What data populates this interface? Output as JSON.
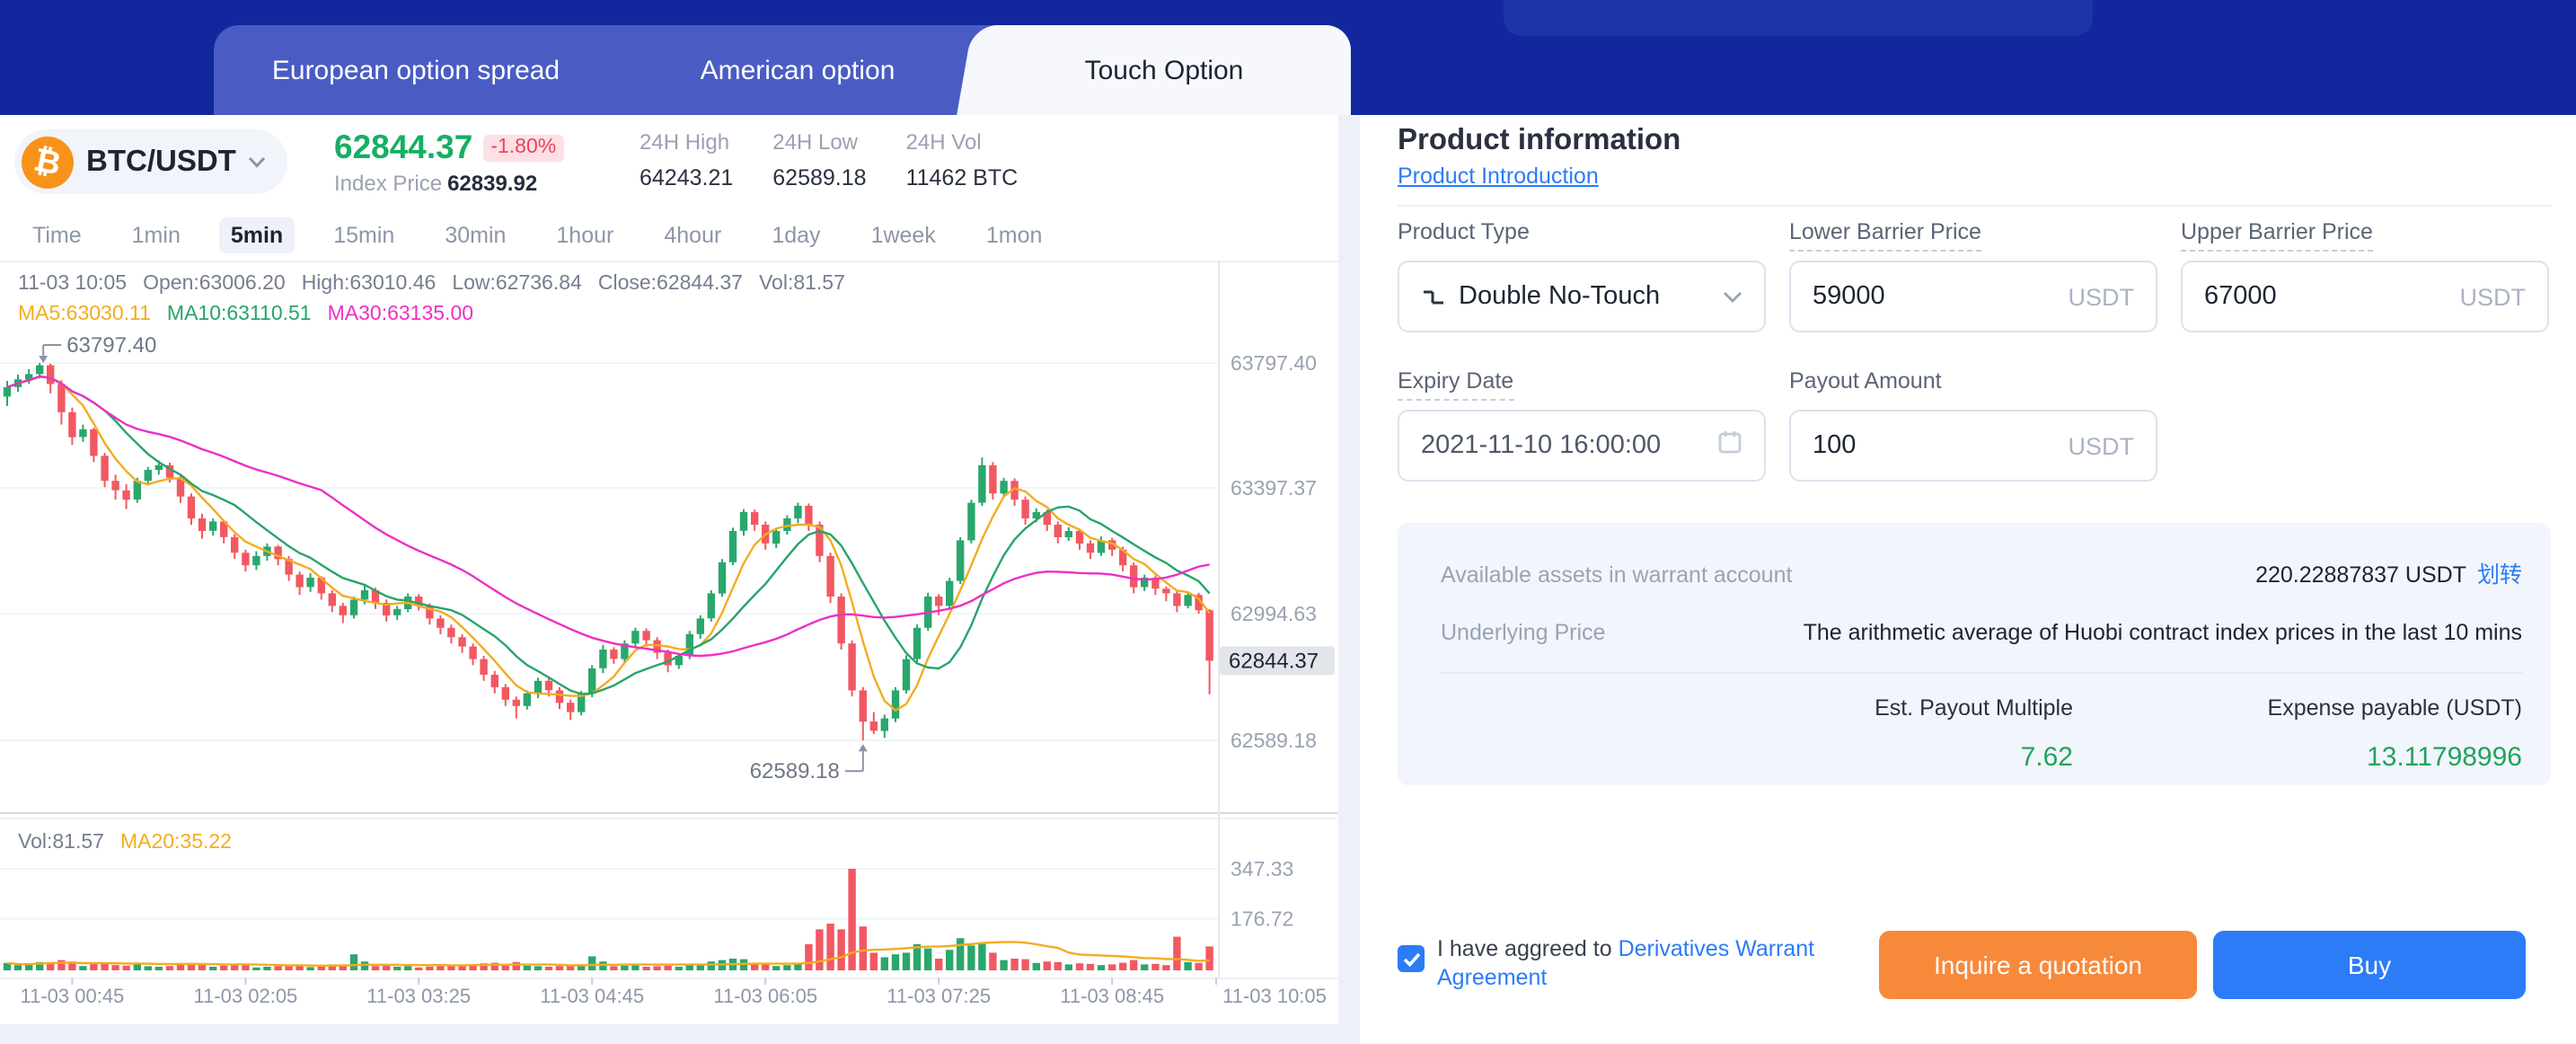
{
  "header": {
    "tabs": [
      {
        "label": "European option spread",
        "active": false
      },
      {
        "label": "American option",
        "active": false
      },
      {
        "label": "Touch Option",
        "active": true
      }
    ]
  },
  "market": {
    "pair": "BTC/USDT",
    "last_price": "62844.37",
    "change_percent": "-1.80%",
    "index_price_label": "Index Price",
    "index_price": "62839.92",
    "stats": [
      {
        "label": "24H High",
        "value": "64243.21"
      },
      {
        "label": "24H Low",
        "value": "62589.18"
      },
      {
        "label": "24H Vol",
        "value": "11462 BTC"
      }
    ]
  },
  "toolbar": {
    "intervals": [
      "Time",
      "1min",
      "5min",
      "15min",
      "30min",
      "1hour",
      "4hour",
      "1day",
      "1week",
      "1mon"
    ],
    "active_interval": "5min"
  },
  "chart_data": {
    "type": "candlestick",
    "symbol": "BTC/USDT",
    "interval": "5min",
    "info_segments": [
      "11-03 10:05",
      "Open:63006.20",
      "High:63010.46",
      "Low:62736.84",
      "Close:62844.37",
      "Vol:81.57"
    ],
    "overlays": [
      {
        "label": "MA5:63030.11",
        "color": "#F3AC1F"
      },
      {
        "label": "MA10:63110.51",
        "color": "#27A46A"
      },
      {
        "label": "MA30:63135.00",
        "color": "#EE2FC4"
      }
    ],
    "volume_info": [
      {
        "label": "Vol:81.57",
        "color": "#757E90"
      },
      {
        "label": "MA20:35.22",
        "color": "#F3AC1F"
      }
    ],
    "price_gridlines": [
      "63797.40",
      "63397.37",
      "62994.63",
      "62589.18"
    ],
    "volume_gridlines": [
      "347.33",
      "176.72"
    ],
    "current_price": "62844.37",
    "annotations": {
      "high": {
        "text": "63797.40",
        "index": 3
      },
      "low": {
        "text": "62589.18",
        "index": 79
      }
    },
    "x_ticks": [
      {
        "label": "11-03 00:45",
        "index": 6
      },
      {
        "label": "11-03 02:05",
        "index": 22
      },
      {
        "label": "11-03 03:25",
        "index": 38
      },
      {
        "label": "11-03 04:45",
        "index": 54
      },
      {
        "label": "11-03 06:05",
        "index": 70
      },
      {
        "label": "11-03 07:25",
        "index": 86
      },
      {
        "label": "11-03 08:45",
        "index": 102
      },
      {
        "label": "11-03 10:05",
        "index": 117
      }
    ],
    "up_color": "#2AA76D",
    "down_color": "#F25862",
    "candles": [
      [
        63690,
        63740,
        63660,
        63720,
        25
      ],
      [
        63720,
        63760,
        63705,
        63745,
        18
      ],
      [
        63745,
        63778,
        63730,
        63762,
        20
      ],
      [
        63762,
        63797.4,
        63748,
        63790,
        28
      ],
      [
        63790,
        63795,
        63700,
        63730,
        28
      ],
      [
        63730,
        63742,
        63600,
        63640,
        35
      ],
      [
        63640,
        63655,
        63535,
        63560,
        30
      ],
      [
        63560,
        63600,
        63545,
        63585,
        15
      ],
      [
        63585,
        63590,
        63480,
        63500,
        22
      ],
      [
        63500,
        63510,
        63400,
        63420,
        26
      ],
      [
        63420,
        63440,
        63360,
        63390,
        18
      ],
      [
        63390,
        63410,
        63330,
        63360,
        16
      ],
      [
        63360,
        63430,
        63350,
        63420,
        20
      ],
      [
        63420,
        63465,
        63405,
        63455,
        14
      ],
      [
        63455,
        63485,
        63440,
        63470,
        12
      ],
      [
        63470,
        63478,
        63415,
        63430,
        15
      ],
      [
        63430,
        63440,
        63350,
        63370,
        22
      ],
      [
        63370,
        63380,
        63280,
        63300,
        25
      ],
      [
        63300,
        63315,
        63235,
        63260,
        19
      ],
      [
        63260,
        63300,
        63245,
        63290,
        12
      ],
      [
        63290,
        63295,
        63220,
        63240,
        16
      ],
      [
        63240,
        63250,
        63170,
        63190,
        18
      ],
      [
        63190,
        63200,
        63130,
        63150,
        20
      ],
      [
        63150,
        63195,
        63135,
        63180,
        10
      ],
      [
        63180,
        63220,
        63165,
        63210,
        12
      ],
      [
        63210,
        63215,
        63150,
        63170,
        14
      ],
      [
        63170,
        63180,
        63100,
        63120,
        16
      ],
      [
        63120,
        63130,
        63055,
        63080,
        18
      ],
      [
        63080,
        63125,
        63065,
        63110,
        11
      ],
      [
        63110,
        63115,
        63040,
        63060,
        15
      ],
      [
        63060,
        63070,
        63000,
        63020,
        20
      ],
      [
        63020,
        63030,
        62965,
        62990,
        18
      ],
      [
        62990,
        63050,
        62980,
        63040,
        55
      ],
      [
        63040,
        63085,
        63025,
        63070,
        30
      ],
      [
        63070,
        63078,
        63010,
        63030,
        15
      ],
      [
        63030,
        63040,
        62970,
        62990,
        17
      ],
      [
        62990,
        63020,
        62975,
        63010,
        12
      ],
      [
        63010,
        63060,
        63000,
        63050,
        14
      ],
      [
        63050,
        63058,
        63005,
        63020,
        10
      ],
      [
        63020,
        63028,
        62960,
        62980,
        13
      ],
      [
        62980,
        62990,
        62930,
        62950,
        15
      ],
      [
        62950,
        62960,
        62900,
        62920,
        14
      ],
      [
        62920,
        62930,
        62870,
        62890,
        16
      ],
      [
        62890,
        62900,
        62830,
        62850,
        18
      ],
      [
        62850,
        62860,
        62780,
        62800,
        24
      ],
      [
        62800,
        62812,
        62740,
        62760,
        26
      ],
      [
        62760,
        62770,
        62700,
        62720,
        22
      ],
      [
        62720,
        62730,
        62660,
        62700,
        28
      ],
      [
        62700,
        62750,
        62688,
        62740,
        16
      ],
      [
        62740,
        62790,
        62725,
        62780,
        14
      ],
      [
        62780,
        62788,
        62730,
        62750,
        12
      ],
      [
        62750,
        62760,
        62690,
        62710,
        15
      ],
      [
        62710,
        62720,
        62655,
        62680,
        18
      ],
      [
        62680,
        62748,
        62670,
        62740,
        20
      ],
      [
        62740,
        62830,
        62728,
        62820,
        48
      ],
      [
        62820,
        62895,
        62805,
        62880,
        30
      ],
      [
        62880,
        62888,
        62835,
        62850,
        14
      ],
      [
        62850,
        62910,
        62840,
        62900,
        16
      ],
      [
        62900,
        62950,
        62888,
        62940,
        18
      ],
      [
        62940,
        62948,
        62890,
        62910,
        12
      ],
      [
        62910,
        62920,
        62850,
        62870,
        14
      ],
      [
        62870,
        62880,
        62808,
        62830,
        16
      ],
      [
        62830,
        62868,
        62818,
        62860,
        12
      ],
      [
        62860,
        62940,
        62850,
        62930,
        20
      ],
      [
        62930,
        62990,
        62915,
        62980,
        22
      ],
      [
        62980,
        63070,
        62970,
        63060,
        30
      ],
      [
        63060,
        63170,
        63050,
        63160,
        35
      ],
      [
        63160,
        63270,
        63150,
        63260,
        40
      ],
      [
        63260,
        63330,
        63245,
        63320,
        38
      ],
      [
        63320,
        63328,
        63260,
        63280,
        20
      ],
      [
        63280,
        63290,
        63200,
        63220,
        22
      ],
      [
        63220,
        63268,
        63205,
        63260,
        15
      ],
      [
        63260,
        63310,
        63248,
        63300,
        18
      ],
      [
        63300,
        63350,
        63285,
        63340,
        20
      ],
      [
        63340,
        63348,
        63260,
        63280,
        90
      ],
      [
        63280,
        63290,
        63160,
        63180,
        140
      ],
      [
        63180,
        63190,
        63030,
        63050,
        160
      ],
      [
        63050,
        63060,
        62880,
        62900,
        140
      ],
      [
        62900,
        62910,
        62730,
        62750,
        347.33
      ],
      [
        62750,
        62760,
        62589.18,
        62650,
        150
      ],
      [
        62650,
        62680,
        62610,
        62620,
        60
      ],
      [
        62620,
        62672,
        62598,
        62660,
        45
      ],
      [
        62660,
        62760,
        62648,
        62750,
        55
      ],
      [
        62750,
        62862,
        62740,
        62850,
        60
      ],
      [
        62850,
        62960,
        62838,
        62950,
        90
      ],
      [
        62950,
        63062,
        62940,
        63050,
        75
      ],
      [
        63050,
        63058,
        62990,
        63020,
        40
      ],
      [
        63020,
        63110,
        63008,
        63100,
        70
      ],
      [
        63100,
        63240,
        63090,
        63230,
        110
      ],
      [
        63230,
        63360,
        63220,
        63350,
        85
      ],
      [
        63350,
        63495,
        63340,
        63470,
        95
      ],
      [
        63470,
        63480,
        63360,
        63380,
        60
      ],
      [
        63380,
        63430,
        63368,
        63420,
        35
      ],
      [
        63420,
        63428,
        63340,
        63360,
        40
      ],
      [
        63360,
        63370,
        63280,
        63300,
        38
      ],
      [
        63300,
        63332,
        63288,
        63320,
        25
      ],
      [
        63320,
        63328,
        63260,
        63280,
        30
      ],
      [
        63280,
        63290,
        63220,
        63240,
        28
      ],
      [
        63240,
        63272,
        63228,
        63260,
        20
      ],
      [
        63260,
        63268,
        63200,
        63220,
        24
      ],
      [
        63220,
        63230,
        63170,
        63190,
        22
      ],
      [
        63190,
        63242,
        63180,
        63230,
        18
      ],
      [
        63230,
        63238,
        63180,
        63200,
        20
      ],
      [
        63200,
        63210,
        63130,
        63150,
        26
      ],
      [
        63150,
        63160,
        63060,
        63080,
        35
      ],
      [
        63080,
        63120,
        63068,
        63110,
        20
      ],
      [
        63110,
        63118,
        63055,
        63075,
        22
      ],
      [
        63075,
        63082,
        63035,
        63060,
        18
      ],
      [
        63060,
        63070,
        63000,
        63020,
        115
      ],
      [
        63020,
        63065,
        63012,
        63055,
        28
      ],
      [
        63055,
        63062,
        62995,
        63006,
        25
      ],
      [
        63006.2,
        63010.46,
        62736.84,
        62844.37,
        81.57
      ]
    ]
  },
  "product": {
    "title": "Product information",
    "intro_link": "Product Introduction",
    "fields": {
      "product_type": {
        "label": "Product Type",
        "value": "Double No-Touch"
      },
      "lower_barrier": {
        "label": "Lower Barrier Price",
        "value": "59000",
        "unit": "USDT"
      },
      "upper_barrier": {
        "label": "Upper Barrier Price",
        "value": "67000",
        "unit": "USDT"
      },
      "expiry": {
        "label": "Expiry Date",
        "value": "2021-11-10 16:00:00"
      },
      "payout": {
        "label": "Payout Amount",
        "value": "100",
        "unit": "USDT"
      }
    },
    "summary": {
      "available_label": "Available assets in warrant account",
      "available_value": "220.22887837 USDT",
      "transfer_link": "划转",
      "underlying_label": "Underlying Price",
      "underlying_value": "The arithmetic average of Huobi contract index prices in the last 10 mins",
      "payout_multiple_label": "Est. Payout Multiple",
      "payout_multiple_value": "7.62",
      "expense_label": "Expense payable (USDT)",
      "expense_value": "13.11798996"
    }
  },
  "footer": {
    "agreement_prefix": "I have aggreed to ",
    "agreement_link": "Derivatives Warrant Agreement",
    "checked": true,
    "quote_button": "Inquire a quotation",
    "buy_button": "Buy"
  },
  "colors": {
    "green": "#15AF62",
    "red": "#F0415C",
    "link_blue": "#2B7CF6",
    "button_orange": "#F7893B",
    "navy": "#12279E"
  }
}
